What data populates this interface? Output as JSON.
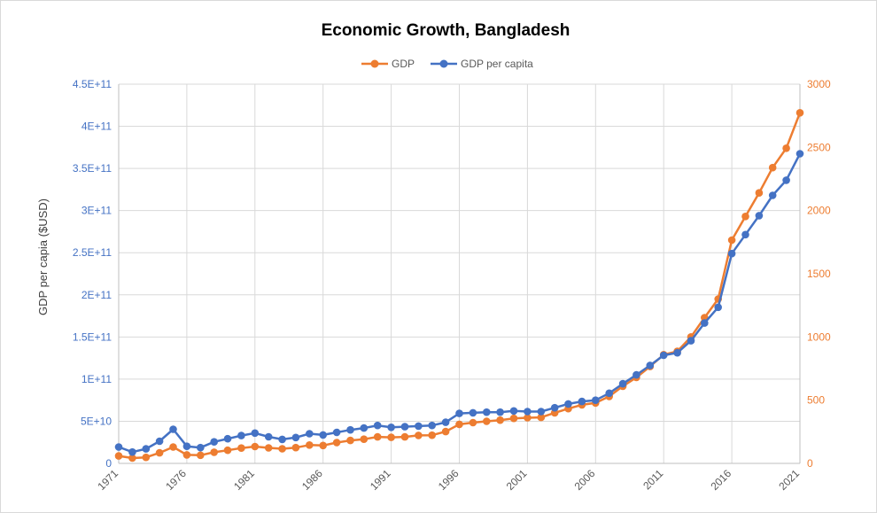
{
  "chart_data": {
    "type": "line",
    "title": "Economic Growth, Bangladesh",
    "ylabel_left": "GDP per capia ($USD)",
    "ylabel_right": "",
    "xlabel": "",
    "x": [
      1971,
      1972,
      1973,
      1974,
      1975,
      1976,
      1977,
      1978,
      1979,
      1980,
      1981,
      1982,
      1983,
      1984,
      1985,
      1986,
      1987,
      1988,
      1989,
      1990,
      1991,
      1992,
      1993,
      1994,
      1995,
      1996,
      1997,
      1998,
      1999,
      2000,
      2001,
      2002,
      2003,
      2004,
      2005,
      2006,
      2007,
      2008,
      2009,
      2010,
      2011,
      2012,
      2013,
      2014,
      2015,
      2016,
      2017,
      2018,
      2019,
      2020,
      2021
    ],
    "x_tick_labels": [
      "1971",
      "1976",
      "1981",
      "1986",
      "1991",
      "1996",
      "2001",
      "2006",
      "2011",
      "2016",
      "2021"
    ],
    "y_left": {
      "min": 0,
      "max": 450000000000.0,
      "tick_values": [
        0,
        50000000000.0,
        100000000000.0,
        150000000000.0,
        200000000000.0,
        250000000000.0,
        300000000000.0,
        350000000000.0,
        400000000000.0,
        450000000000.0
      ],
      "tick_labels": [
        "0",
        "5E+10",
        "1E+11",
        "1.5E+11",
        "2E+11",
        "2.5E+11",
        "3E+11",
        "3.5E+11",
        "4E+11",
        "4.5E+11"
      ]
    },
    "y_right": {
      "min": 0,
      "max": 3000,
      "tick_values": [
        0,
        500,
        1000,
        1500,
        2000,
        2500,
        3000
      ],
      "tick_labels": [
        "0",
        "500",
        "1000",
        "1500",
        "2000",
        "2500",
        "3000"
      ]
    },
    "grid": true,
    "legend_position": "top-center",
    "series": [
      {
        "name": "GDP",
        "axis": "left",
        "color": "#ed7d31",
        "values": [
          8800000000.0,
          6300000000.0,
          7200000000.0,
          12500000000.0,
          19500000000.0,
          10100000000.0,
          9650000000.0,
          13300000000.0,
          15600000000.0,
          18200000000.0,
          20000000000.0,
          18400000000.0,
          17400000000.0,
          18700000000.0,
          21800000000.0,
          21200000000.0,
          24700000000.0,
          27200000000.0,
          28700000000.0,
          31400000000.0,
          30900000000.0,
          31400000000.0,
          33200000000.0,
          33400000000.0,
          37700000000.0,
          46400000000.0,
          48400000000.0,
          49900000000.0,
          51300000000.0,
          53400000000.0,
          54100000000.0,
          54600000000.0,
          60000000000.0,
          65000000000.0,
          69500000000.0,
          71700000000.0,
          79500000000.0,
          91600000000.0,
          102000000000.0,
          115000000000.0,
          129000000000.0,
          133000000000.0,
          150000000000.0,
          173000000000.0,
          195000000000.0,
          265000000000.0,
          293000000000.0,
          321000000000.0,
          351000000000.0,
          374000000000.0,
          416000000000.0
        ]
      },
      {
        "name": "GDP per capita",
        "axis": "right",
        "color": "#4472c4",
        "values": [
          130,
          90,
          115,
          175,
          270,
          135,
          125,
          170,
          195,
          220,
          240,
          210,
          190,
          205,
          235,
          225,
          245,
          265,
          280,
          300,
          285,
          290,
          295,
          300,
          325,
          395,
          400,
          405,
          405,
          415,
          410,
          410,
          440,
          470,
          490,
          500,
          555,
          630,
          700,
          775,
          855,
          875,
          970,
          1110,
          1235,
          1660,
          1810,
          1960,
          2120,
          2240,
          2450
        ]
      }
    ]
  }
}
